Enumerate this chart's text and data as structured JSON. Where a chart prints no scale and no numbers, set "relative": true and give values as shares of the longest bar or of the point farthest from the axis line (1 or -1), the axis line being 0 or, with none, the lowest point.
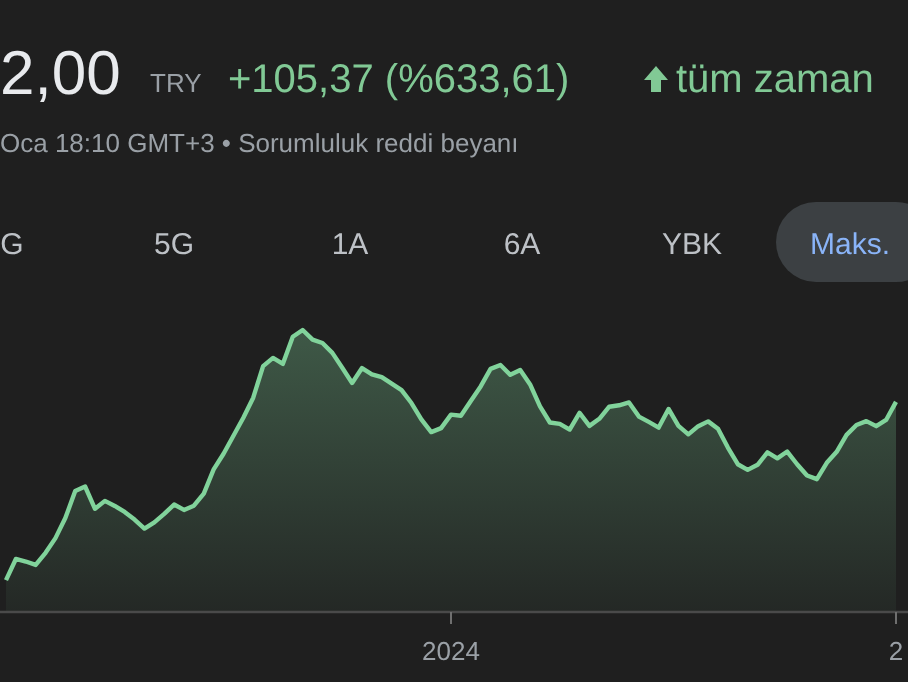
{
  "chart_data": {
    "type": "area",
    "relative": true,
    "tick_labels": "x",
    "annotations": [
      "2,00",
      "TRY",
      "+105,37 (%633,61)",
      "tüm zaman",
      "Oca 18:10 GMT+3 • Sorumluluk reddi beyanı",
      "G",
      "5G",
      "1A",
      "6A",
      "YBK",
      "Maks."
    ],
    "categories": [
      null,
      null,
      null,
      null,
      null,
      null,
      null,
      null,
      null,
      null,
      null,
      null,
      null,
      null,
      null,
      null,
      null,
      null,
      null,
      null,
      null,
      null,
      null,
      null,
      null,
      null,
      null,
      null,
      null,
      null,
      null,
      null,
      null,
      null,
      null,
      null,
      null,
      null,
      null,
      null,
      null,
      null,
      null,
      null,
      null,
      "2024",
      null,
      null,
      null,
      null,
      null,
      null,
      null,
      null,
      null,
      null,
      null,
      null,
      null,
      null,
      null,
      null,
      null,
      null,
      null,
      null,
      null,
      null,
      null,
      null,
      null,
      null,
      null,
      null,
      null,
      null,
      null,
      null,
      null,
      null,
      null,
      null,
      null,
      null,
      null,
      null,
      null,
      null,
      null,
      null,
      "2"
    ],
    "series": [
      {
        "color": "#81d39b",
        "values": [
          0.113,
          0.188,
          0.179,
          0.167,
          0.21,
          0.262,
          0.333,
          0.429,
          0.445,
          0.366,
          0.394,
          0.376,
          0.355,
          0.328,
          0.296,
          0.318,
          0.348,
          0.381,
          0.362,
          0.377,
          0.42,
          0.506,
          0.561,
          0.625,
          0.689,
          0.76,
          0.872,
          0.901,
          0.88,
          0.976,
          1.0,
          0.966,
          0.954,
          0.919,
          0.866,
          0.812,
          0.865,
          0.843,
          0.833,
          0.81,
          0.787,
          0.741,
          0.683,
          0.638,
          0.652,
          0.7,
          0.696,
          0.748,
          0.8,
          0.862,
          0.876,
          0.841,
          0.858,
          0.807,
          0.729,
          0.672,
          0.667,
          0.647,
          0.706,
          0.66,
          0.685,
          0.728,
          0.733,
          0.743,
          0.693,
          0.674,
          0.654,
          0.72,
          0.66,
          0.63,
          0.659,
          0.676,
          0.65,
          0.583,
          0.524,
          0.504,
          0.522,
          0.566,
          0.545,
          0.569,
          0.524,
          0.484,
          0.471,
          0.529,
          0.568,
          0.628,
          0.663,
          0.677,
          0.659,
          0.681,
          0.745
        ]
      }
    ]
  }
}
